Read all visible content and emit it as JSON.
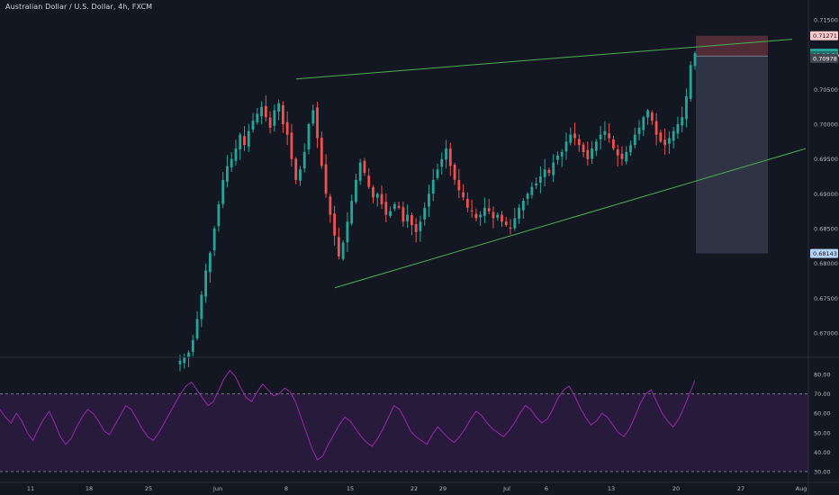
{
  "header": {
    "title": "Australian Dollar / U.S. Dollar, 4h, FXCM"
  },
  "colors": {
    "background": "#131722",
    "candle_up": "#26a69a",
    "candle_down": "#ef5350",
    "trendline": "#4caf50",
    "rsi": "#9c27b0",
    "rsi_band": "#2a1b3d",
    "stop_zone": "#5b3039",
    "target_zone": "#363c4e"
  },
  "chart_data": [
    {
      "type": "candlestick",
      "symbol": "AUD/USD",
      "timeframe": "4h",
      "ylim": [
        0.6655,
        0.7155
      ],
      "y_ticks": [
        "0.71500",
        "0.70500",
        "0.70000",
        "0.69500",
        "0.69000",
        "0.68500",
        "0.68000",
        "0.67500",
        "0.67000"
      ],
      "x_ticks": [
        "11",
        "18",
        "25",
        "Jun",
        "8",
        "15",
        "22",
        "29",
        "Jul",
        "6",
        "13",
        "20",
        "27",
        "Aug"
      ],
      "price_tags": [
        {
          "label": "0.71271",
          "value": 0.71271,
          "role": "stop"
        },
        {
          "label": "0.71020",
          "value": 0.7102,
          "role": "last"
        },
        {
          "label": "02:10:29",
          "value": 0.70985,
          "role": "countdown"
        },
        {
          "label": "0.70978",
          "value": 0.70945,
          "role": "level"
        },
        {
          "label": "0.68143",
          "value": 0.68143,
          "role": "target"
        }
      ],
      "close_series": [
        0.666,
        0.6665,
        0.6672,
        0.669,
        0.672,
        0.6755,
        0.679,
        0.6815,
        0.685,
        0.6885,
        0.692,
        0.694,
        0.695,
        0.6965,
        0.6985,
        0.697,
        0.699,
        0.7005,
        0.7015,
        0.7025,
        0.701,
        0.6995,
        0.702,
        0.703,
        0.7,
        0.6985,
        0.695,
        0.692,
        0.6935,
        0.696,
        0.7,
        0.702,
        0.698,
        0.694,
        0.69,
        0.687,
        0.684,
        0.681,
        0.683,
        0.686,
        0.689,
        0.692,
        0.6945,
        0.693,
        0.691,
        0.6895,
        0.69,
        0.6885,
        0.687,
        0.6875,
        0.6885,
        0.688,
        0.686,
        0.687,
        0.6855,
        0.6845,
        0.686,
        0.688,
        0.69,
        0.692,
        0.6935,
        0.695,
        0.6965,
        0.694,
        0.692,
        0.6905,
        0.6895,
        0.688,
        0.6875,
        0.6865,
        0.687,
        0.688,
        0.6875,
        0.6865,
        0.687,
        0.686,
        0.6855,
        0.685,
        0.6865,
        0.688,
        0.689,
        0.69,
        0.691,
        0.6915,
        0.6925,
        0.6935,
        0.693,
        0.6945,
        0.6955,
        0.696,
        0.6975,
        0.6985,
        0.698,
        0.697,
        0.696,
        0.695,
        0.6965,
        0.6975,
        0.6985,
        0.699,
        0.698,
        0.6965,
        0.6955,
        0.695,
        0.696,
        0.697,
        0.6985,
        0.6995,
        0.701,
        0.702,
        0.7005,
        0.6985,
        0.6975,
        0.697,
        0.698,
        0.699,
        0.7,
        0.701,
        0.704,
        0.7085,
        0.7102
      ],
      "trendlines": [
        {
          "name": "upper",
          "from": {
            "x": "Jun 8",
            "y": 0.7065
          },
          "to": {
            "x": "Aug",
            "y": 0.7122
          }
        },
        {
          "name": "lower",
          "from": {
            "x": "Jun 12",
            "y": 0.6765
          },
          "to": {
            "x": "Aug",
            "y": 0.6965
          }
        }
      ],
      "position": {
        "type": "short",
        "entry": 0.70978,
        "stop": 0.71271,
        "target": 0.68143
      }
    },
    {
      "type": "line",
      "indicator": "RSI",
      "ylim": [
        28,
        87
      ],
      "y_ticks": [
        "80.00",
        "70.00",
        "60.00",
        "50.00",
        "40.00",
        "30.00"
      ],
      "bands": [
        30,
        70
      ],
      "values": [
        62,
        58,
        55,
        60,
        56,
        50,
        46,
        52,
        57,
        61,
        55,
        48,
        44,
        47,
        53,
        58,
        62,
        60,
        56,
        51,
        49,
        54,
        59,
        64,
        62,
        57,
        52,
        48,
        46,
        50,
        55,
        60,
        65,
        70,
        74,
        76,
        72,
        68,
        64,
        66,
        72,
        78,
        82,
        79,
        73,
        68,
        66,
        71,
        75,
        72,
        69,
        70,
        73,
        71,
        66,
        58,
        50,
        42,
        36,
        38,
        44,
        49,
        54,
        58,
        56,
        52,
        48,
        45,
        43,
        47,
        52,
        58,
        64,
        62,
        57,
        51,
        48,
        46,
        44,
        49,
        53,
        50,
        47,
        45,
        48,
        52,
        57,
        61,
        59,
        55,
        52,
        50,
        48,
        51,
        55,
        60,
        64,
        62,
        58,
        55,
        57,
        62,
        68,
        72,
        74,
        69,
        63,
        58,
        54,
        56,
        60,
        58,
        54,
        50,
        48,
        52,
        58,
        65,
        70,
        72,
        66,
        60,
        56,
        53,
        57,
        63,
        70,
        77
      ]
    }
  ]
}
